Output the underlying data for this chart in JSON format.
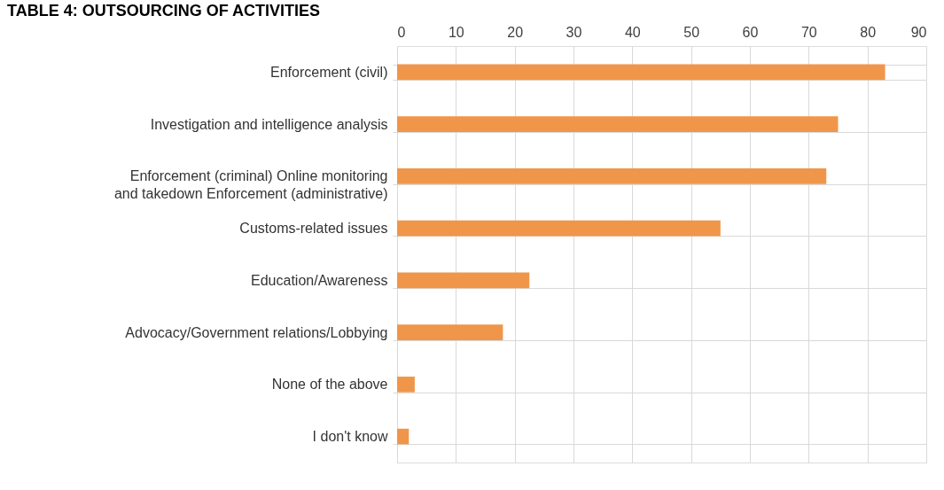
{
  "chart_data": {
    "type": "bar",
    "orientation": "horizontal",
    "title": "TABLE 4: OUTSOURCING OF ACTIVITIES",
    "categories": [
      "Enforcement (civil)",
      "Investigation and intelligence analysis",
      "Enforcement (criminal) Online monitoring and takedown Enforcement (administrative)",
      "Customs-related issues",
      "Education/Awareness",
      "Advocacy/Government relations/Lobbying",
      "None of the above",
      "I don't know"
    ],
    "values": [
      83,
      75,
      73,
      55,
      22.5,
      18,
      3,
      2
    ],
    "color": "#f0964a",
    "xlim": [
      0,
      90
    ],
    "xticks": [
      0,
      10,
      20,
      30,
      40,
      50,
      60,
      70,
      80,
      90
    ],
    "grid": true
  }
}
